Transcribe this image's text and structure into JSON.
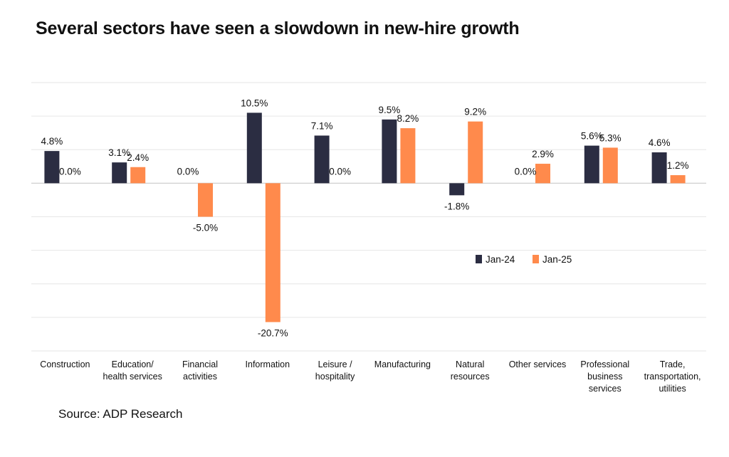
{
  "title": "Several sectors have seen a slowdown in new-hire growth",
  "source": "Source: ADP Research",
  "colors": {
    "Jan-24": "#2b2d42",
    "Jan-25": "#ff8a4c"
  },
  "chart_data": {
    "type": "bar",
    "title": "Several sectors have seen a slowdown in new-hire growth",
    "categories": [
      "Construction",
      "Education/\nhealth services",
      "Financial\nactivities",
      "Information",
      "Leisure /\nhospitality",
      "Manufacturing",
      "Natural\nresources",
      "Other services",
      "Professional\nbusiness\nservices",
      "Trade,\ntransportation,\nutilities"
    ],
    "series": [
      {
        "name": "Jan-24",
        "values": [
          4.8,
          3.1,
          0.0,
          10.5,
          7.1,
          9.5,
          -1.8,
          0.0,
          5.6,
          4.6
        ],
        "labels": [
          "4.8%",
          "3.1%",
          "0.0%",
          "10.5%",
          "7.1%",
          "9.5%",
          "-1.8%",
          "0.0%",
          "5.6%",
          "4.6%"
        ]
      },
      {
        "name": "Jan-25",
        "values": [
          0.0,
          2.4,
          -5.0,
          -20.7,
          0.0,
          8.2,
          9.2,
          2.9,
          5.3,
          1.2
        ],
        "labels": [
          "0.0%",
          "2.4%",
          "-5.0%",
          "-20.7%",
          "0.0%",
          "8.2%",
          "9.2%",
          "2.9%",
          "5.3%",
          "1.2%"
        ]
      }
    ],
    "ylim": [
      -25,
      15
    ],
    "grid": true,
    "legend": "right, inside plot"
  }
}
